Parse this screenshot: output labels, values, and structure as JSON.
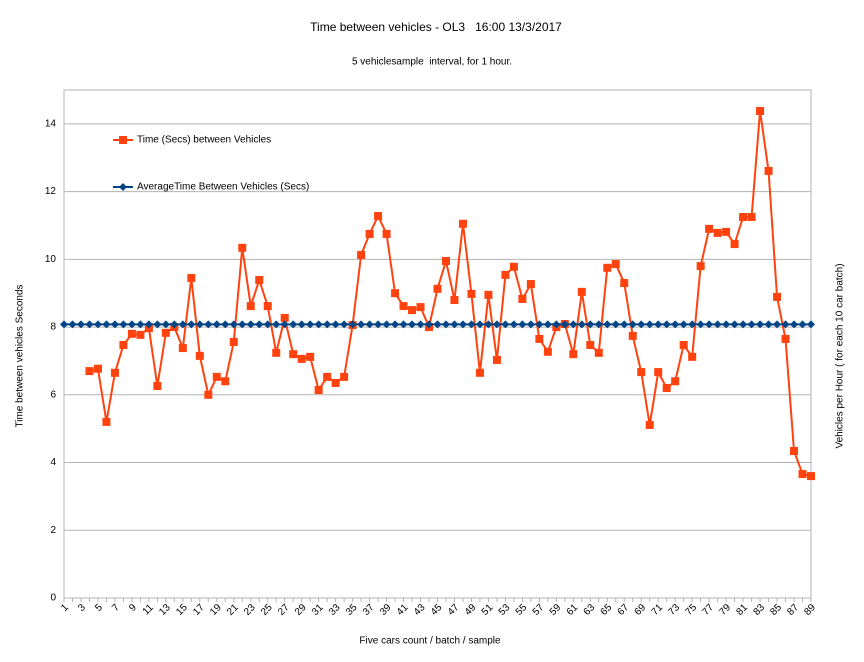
{
  "chart_data": {
    "type": "line",
    "title": "Time between vehicles - OL3   16:00 13/3/2017",
    "subtitle": "5 vehiclesample  interval, for 1 hour.",
    "x_label": "Five cars count / batch / sample",
    "y_label": "Time between vehicles Seconds",
    "y2_label": "Vehicles per Hour ( for each 10 car batch)",
    "categories": [
      "1",
      null,
      "3",
      null,
      "5",
      null,
      "7",
      null,
      "9",
      null,
      "11",
      null,
      "13",
      null,
      "15",
      null,
      "17",
      null,
      "19",
      null,
      "21",
      null,
      "23",
      null,
      "25",
      null,
      "27",
      null,
      "29",
      null,
      "31",
      null,
      "33",
      null,
      "35",
      null,
      "37",
      null,
      "39",
      null,
      "41",
      null,
      "43",
      null,
      "45",
      null,
      "47",
      null,
      "49",
      null,
      "51",
      null,
      "53",
      null,
      "55",
      null,
      "57",
      null,
      "59",
      null,
      "61",
      null,
      "63",
      null,
      "65",
      null,
      "67",
      null,
      "69",
      null,
      "71",
      null,
      "73",
      null,
      "75",
      null,
      "77",
      null,
      "79",
      null,
      "81",
      null,
      "83",
      null,
      "85",
      null,
      "87",
      null,
      "89"
    ],
    "series": [
      {
        "name": "Time (Secs) between Vehicles",
        "color": "#ff420e",
        "marker": "square",
        "values": [
          null,
          null,
          null,
          6.7,
          6.77,
          5.2,
          6.65,
          7.47,
          7.8,
          7.77,
          7.97,
          6.26,
          7.83,
          8.0,
          7.38,
          9.45,
          7.15,
          6.0,
          6.53,
          6.4,
          7.56,
          10.34,
          8.62,
          9.39,
          8.62,
          7.24,
          8.27,
          7.2,
          7.06,
          7.12,
          6.14,
          6.53,
          6.35,
          6.53,
          8.06,
          10.13,
          10.75,
          11.28,
          10.75,
          9.0,
          8.62,
          8.5,
          8.59,
          8.0,
          9.13,
          9.95,
          8.8,
          11.05,
          8.98,
          6.65,
          8.95,
          7.03,
          9.54,
          9.78,
          8.83,
          9.27,
          7.65,
          7.27,
          8.0,
          8.09,
          7.2,
          9.04,
          7.47,
          7.24,
          9.75,
          9.86,
          9.3,
          7.74,
          6.67,
          5.11,
          6.67,
          6.2,
          6.4,
          7.47,
          7.12,
          9.8,
          10.9,
          10.78,
          10.81,
          10.45,
          11.25,
          11.25,
          14.38,
          12.61,
          8.89,
          7.65,
          4.34,
          3.66,
          3.6
        ]
      },
      {
        "name": "AverageTime Between Vehicles (Secs)",
        "color": "#004586",
        "marker": "diamond",
        "values": [
          8.08,
          8.08,
          8.08,
          8.08,
          8.08,
          8.08,
          8.08,
          8.08,
          8.08,
          8.08,
          8.08,
          8.08,
          8.08,
          8.08,
          8.08,
          8.08,
          8.08,
          8.08,
          8.08,
          8.08,
          8.08,
          8.08,
          8.08,
          8.08,
          8.08,
          8.08,
          8.08,
          8.08,
          8.08,
          8.08,
          8.08,
          8.08,
          8.08,
          8.08,
          8.08,
          8.08,
          8.08,
          8.08,
          8.08,
          8.08,
          8.08,
          8.08,
          8.08,
          8.08,
          8.08,
          8.08,
          8.08,
          8.08,
          8.08,
          8.08,
          8.08,
          8.08,
          8.08,
          8.08,
          8.08,
          8.08,
          8.08,
          8.08,
          8.08,
          8.08,
          8.08,
          8.08,
          8.08,
          8.08,
          8.08,
          8.08,
          8.08,
          8.08,
          8.08,
          8.08,
          8.08,
          8.08,
          8.08,
          8.08,
          8.08,
          8.08,
          8.08,
          8.08,
          8.08,
          8.08,
          8.08,
          8.08,
          8.08,
          8.08,
          8.08,
          8.08,
          8.08,
          8.08,
          8.08
        ]
      }
    ],
    "ylim": [
      0,
      15
    ],
    "yticks": [
      0,
      2,
      4,
      6,
      8,
      10,
      12,
      14
    ],
    "grid": true,
    "legend": "top-left"
  }
}
